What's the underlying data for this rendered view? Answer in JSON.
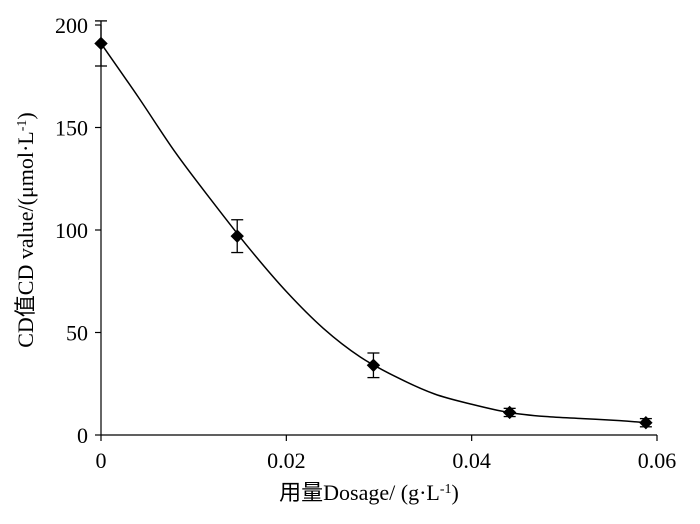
{
  "chart_data": {
    "type": "scatter",
    "xlabel": "用量Dosage/ (g·L",
    "xlabel_sup": "-1",
    "xlabel_suffix": ")",
    "ylabel": "CD值CD value/(μmol·L",
    "ylabel_sup": "-1",
    "ylabel_suffix": ")",
    "xlim": [
      0,
      0.06
    ],
    "ylim": [
      0,
      200
    ],
    "xticks": [
      0,
      0.02,
      0.04,
      0.06
    ],
    "xtick_labels": [
      "0",
      "0.02",
      "0.04",
      "0.06"
    ],
    "yticks": [
      0,
      50,
      100,
      150,
      200
    ],
    "ytick_labels": [
      "0",
      "50",
      "100",
      "150",
      "200"
    ],
    "grid": false,
    "series": [
      {
        "marker": "diamond",
        "color": "#000000",
        "x": [
          0.0,
          0.0147,
          0.0294,
          0.0441,
          0.0588
        ],
        "y": [
          191,
          97,
          34,
          11,
          6
        ],
        "error": [
          11,
          8,
          6,
          2,
          2
        ]
      }
    ],
    "fit_curve": {
      "x": [
        0,
        0.004,
        0.008,
        0.012,
        0.016,
        0.02,
        0.024,
        0.028,
        0.032,
        0.036,
        0.04,
        0.044,
        0.048,
        0.052,
        0.056,
        0.0588
      ],
      "y": [
        191,
        165,
        138,
        114,
        91,
        70,
        52,
        38,
        28,
        20,
        15,
        11,
        9,
        8,
        7,
        6
      ]
    }
  }
}
